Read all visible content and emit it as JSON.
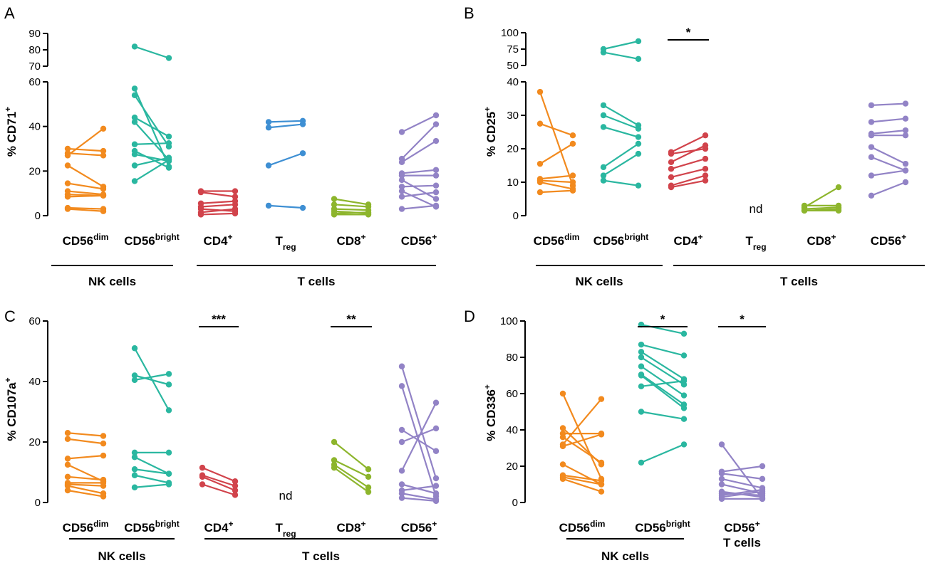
{
  "colors": {
    "orange": "#F28A1E",
    "teal": "#2AB7A0",
    "red": "#D1434B",
    "blue": "#3E8FD3",
    "green": "#8DB52C",
    "purple": "#9283C6"
  },
  "chart_data": [
    {
      "type": "paired-dot",
      "panel": "A",
      "ylabel_main": "% CD71",
      "ylabel_sup": "+",
      "yticks_lower": [
        0,
        20,
        40,
        60
      ],
      "yticks_upper": [
        70,
        80,
        90
      ],
      "ylim_lower": [
        0,
        60
      ],
      "ylim_upper": [
        70,
        90
      ],
      "categories": [
        {
          "main": "CD56",
          "sup": "dim",
          "sub": "",
          "color": "orange",
          "nd": false,
          "pairs": [
            [
              30,
              29
            ],
            [
              28,
              27
            ],
            [
              27,
              39
            ],
            [
              22.5,
              13
            ],
            [
              14.5,
              12
            ],
            [
              11,
              9.5
            ],
            [
              9.5,
              9
            ],
            [
              8.5,
              9
            ],
            [
              3.5,
              3
            ],
            [
              3,
              2
            ]
          ]
        },
        {
          "main": "CD56",
          "sup": "bright",
          "sub": "",
          "color": "teal",
          "nd": false,
          "pairs": [
            [
              82,
              75
            ],
            [
              57,
              22
            ],
            [
              54,
              31
            ],
            [
              44,
              35.5
            ],
            [
              42,
              25
            ],
            [
              32,
              32.5
            ],
            [
              29,
              21.5
            ],
            [
              27.5,
              24.5
            ],
            [
              22.5,
              26
            ],
            [
              15.5,
              25
            ]
          ]
        },
        {
          "main": "CD4",
          "sup": "+",
          "sub": "",
          "color": "red",
          "nd": false,
          "pairs": [
            [
              11,
              11
            ],
            [
              10.5,
              8.5
            ],
            [
              5.5,
              6.5
            ],
            [
              4,
              5
            ],
            [
              3,
              2
            ],
            [
              1.5,
              3
            ],
            [
              0.5,
              1
            ]
          ]
        },
        {
          "main": "T",
          "sup": "",
          "sub": "reg",
          "color": "blue",
          "nd": false,
          "pairs": [
            [
              42,
              42.5
            ],
            [
              39.5,
              41
            ],
            [
              22.5,
              28
            ],
            [
              4.5,
              3.5
            ]
          ]
        },
        {
          "main": "CD8",
          "sup": "+",
          "sub": "",
          "color": "green",
          "nd": false,
          "pairs": [
            [
              7.5,
              5
            ],
            [
              5,
              4
            ],
            [
              3,
              2.5
            ],
            [
              2,
              1
            ],
            [
              1,
              1.5
            ],
            [
              0.5,
              0.5
            ]
          ]
        },
        {
          "main": "CD56",
          "sup": "+",
          "sub": "",
          "color": "purple",
          "nd": false,
          "pairs": [
            [
              37.5,
              45
            ],
            [
              25.5,
              41
            ],
            [
              24,
              33.5
            ],
            [
              19,
              20.5
            ],
            [
              18,
              18
            ],
            [
              16,
              7.5
            ],
            [
              13,
              13.5
            ],
            [
              11,
              4
            ],
            [
              8.5,
              10.5
            ],
            [
              3,
              4.5
            ]
          ]
        }
      ],
      "groups": [
        {
          "label": "NK cells",
          "from": 0,
          "to": 1
        },
        {
          "label": "T cells",
          "from": 2,
          "to": 5
        }
      ],
      "significance": []
    },
    {
      "type": "paired-dot",
      "panel": "B",
      "ylabel_main": "% CD25",
      "ylabel_sup": "+",
      "yticks_lower": [
        0,
        10,
        20,
        30,
        40
      ],
      "yticks_upper": [
        50,
        75,
        100
      ],
      "ylim_lower": [
        0,
        40
      ],
      "ylim_upper": [
        50,
        100
      ],
      "categories": [
        {
          "main": "CD56",
          "sup": "dim",
          "sub": "",
          "color": "orange",
          "nd": false,
          "pairs": [
            [
              37,
              9
            ],
            [
              27.5,
              24
            ],
            [
              15.5,
              21.5
            ],
            [
              11,
              12
            ],
            [
              10.5,
              10
            ],
            [
              10,
              8
            ],
            [
              7,
              7.5
            ]
          ]
        },
        {
          "main": "CD56",
          "sup": "bright",
          "sub": "",
          "color": "teal",
          "nd": false,
          "pairs": [
            [
              75,
              87
            ],
            [
              70,
              60
            ],
            [
              33,
              27
            ],
            [
              30,
              26
            ],
            [
              26.5,
              23.5
            ],
            [
              14.5,
              21.5
            ],
            [
              12,
              18.5
            ],
            [
              10.5,
              9
            ]
          ]
        },
        {
          "main": "CD4",
          "sup": "+",
          "sub": "",
          "color": "red",
          "nd": false,
          "pairs": [
            [
              19,
              24
            ],
            [
              18.5,
              20
            ],
            [
              16,
              21
            ],
            [
              14,
              17
            ],
            [
              11.5,
              14
            ],
            [
              9,
              12
            ],
            [
              8.5,
              10.5
            ]
          ]
        },
        {
          "main": "T",
          "sup": "",
          "sub": "reg",
          "color": "blue",
          "nd": true,
          "pairs": []
        },
        {
          "main": "CD8",
          "sup": "+",
          "sub": "",
          "color": "green",
          "nd": false,
          "pairs": [
            [
              2.5,
              8.5
            ],
            [
              3,
              3
            ],
            [
              2,
              2.5
            ],
            [
              1.5,
              2
            ],
            [
              1.5,
              1.5
            ]
          ]
        },
        {
          "main": "CD56",
          "sup": "+",
          "sub": "",
          "color": "purple",
          "nd": false,
          "pairs": [
            [
              33,
              33.5
            ],
            [
              28,
              29
            ],
            [
              24.5,
              25.5
            ],
            [
              24,
              24
            ],
            [
              20.5,
              15.5
            ],
            [
              17.5,
              13.5
            ],
            [
              12,
              13.5
            ],
            [
              6,
              10
            ]
          ]
        }
      ],
      "groups": [
        {
          "label": "NK cells",
          "from": 0,
          "to": 1
        },
        {
          "label": "T cells",
          "from": 2,
          "to": 5
        }
      ],
      "significance": [
        {
          "cat": 2,
          "label": "*"
        }
      ]
    },
    {
      "type": "paired-dot",
      "panel": "C",
      "ylabel_main": "% CD107a",
      "ylabel_sup": "+",
      "yticks": [
        0,
        20,
        40,
        60
      ],
      "ylim": [
        0,
        60
      ],
      "categories": [
        {
          "main": "CD56",
          "sup": "dim",
          "sub": "",
          "color": "orange",
          "nd": false,
          "pairs": [
            [
              23,
              22
            ],
            [
              21,
              19.5
            ],
            [
              14.5,
              15.5
            ],
            [
              12.5,
              7
            ],
            [
              8.5,
              7.5
            ],
            [
              6.5,
              6.5
            ],
            [
              6,
              5.5
            ],
            [
              5.5,
              3
            ],
            [
              4,
              2
            ]
          ]
        },
        {
          "main": "CD56",
          "sup": "bright",
          "sub": "",
          "color": "teal",
          "nd": false,
          "pairs": [
            [
              51,
              30.5
            ],
            [
              42,
              39
            ],
            [
              40.5,
              42.5
            ],
            [
              16.5,
              16.5
            ],
            [
              15,
              9.5
            ],
            [
              11,
              9.5
            ],
            [
              9,
              6.5
            ],
            [
              5,
              6
            ]
          ]
        },
        {
          "main": "CD4",
          "sup": "+",
          "sub": "",
          "color": "red",
          "nd": false,
          "pairs": [
            [
              11.5,
              7
            ],
            [
              9,
              5.5
            ],
            [
              8.5,
              4
            ],
            [
              6,
              2.5
            ]
          ]
        },
        {
          "main": "T",
          "sup": "",
          "sub": "reg",
          "color": "blue",
          "nd": true,
          "pairs": []
        },
        {
          "main": "CD8",
          "sup": "+",
          "sub": "",
          "color": "green",
          "nd": false,
          "pairs": [
            [
              20,
              11
            ],
            [
              14,
              8.5
            ],
            [
              12.5,
              5
            ],
            [
              11.5,
              3.5
            ]
          ]
        },
        {
          "main": "CD56",
          "sup": "+",
          "sub": "",
          "color": "purple",
          "nd": false,
          "pairs": [
            [
              45,
              8
            ],
            [
              38.5,
              2
            ],
            [
              24,
              17
            ],
            [
              20,
              24.5
            ],
            [
              10.5,
              33
            ],
            [
              6,
              3
            ],
            [
              4,
              5.5
            ],
            [
              3,
              1
            ],
            [
              1.5,
              0.5
            ]
          ]
        }
      ],
      "groups": [
        {
          "label": "NK cells",
          "from": 0,
          "to": 1
        },
        {
          "label": "T cells",
          "from": 2,
          "to": 5
        }
      ],
      "significance": [
        {
          "cat": 2,
          "label": "***"
        },
        {
          "cat": 4,
          "label": "**"
        }
      ]
    },
    {
      "type": "paired-dot",
      "panel": "D",
      "ylabel_main": "% CD336",
      "ylabel_sup": "+",
      "yticks": [
        0,
        20,
        40,
        60,
        80,
        100
      ],
      "ylim": [
        0,
        100
      ],
      "categories": [
        {
          "main": "CD56",
          "sup": "dim",
          "sub": "",
          "color": "orange",
          "nd": false,
          "pairs": [
            [
              60,
              13
            ],
            [
              41,
              21
            ],
            [
              38,
              38
            ],
            [
              36,
              22
            ],
            [
              32,
              57
            ],
            [
              31,
              37.5
            ],
            [
              21,
              10
            ],
            [
              15,
              12
            ],
            [
              14,
              10
            ],
            [
              13,
              6
            ]
          ]
        },
        {
          "main": "CD56",
          "sup": "bright",
          "sub": "",
          "color": "teal",
          "nd": false,
          "pairs": [
            [
              98,
              93
            ],
            [
              87,
              81
            ],
            [
              83,
              68
            ],
            [
              80,
              65
            ],
            [
              75,
              59
            ],
            [
              70.5,
              54
            ],
            [
              70,
              52
            ],
            [
              64,
              67
            ],
            [
              50,
              46
            ],
            [
              22,
              32
            ]
          ]
        },
        {
          "main": "CD56",
          "sup": "+",
          "sub": "",
          "line2": "T cells",
          "color": "purple",
          "nd": false,
          "pairs": [
            [
              32,
              2
            ],
            [
              17,
              20
            ],
            [
              16,
              13
            ],
            [
              13,
              8
            ],
            [
              10,
              5
            ],
            [
              6,
              3
            ],
            [
              5,
              4
            ],
            [
              4,
              7
            ],
            [
              3,
              6
            ],
            [
              2,
              2
            ]
          ]
        }
      ],
      "groups": [
        {
          "label": "NK cells",
          "from": 0,
          "to": 1
        }
      ],
      "significance": [
        {
          "cat": 1,
          "label": "*"
        },
        {
          "cat": 2,
          "label": "*"
        }
      ]
    }
  ]
}
